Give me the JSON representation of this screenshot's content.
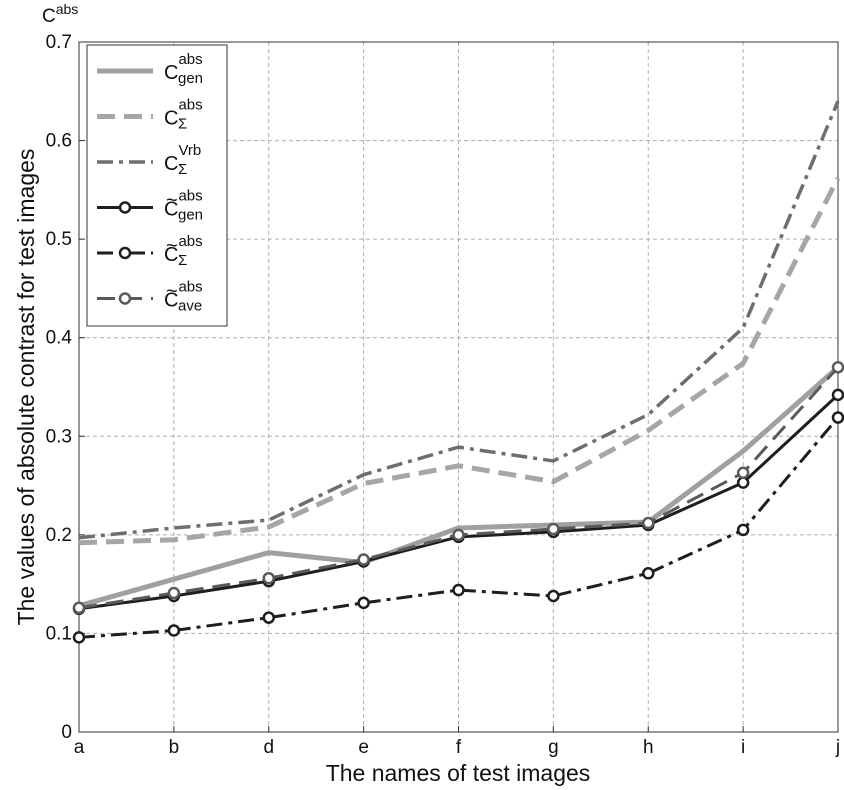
{
  "chart_data": {
    "type": "line",
    "title": "",
    "corner_label": {
      "base": "C",
      "sup": "abs"
    },
    "xlabel": "The names of test images",
    "ylabel": "The values of absolute contrast for test images",
    "categories": [
      "a",
      "b",
      "d",
      "e",
      "f",
      "g",
      "h",
      "i",
      "j"
    ],
    "ylim": [
      0,
      0.7
    ],
    "yticks": [
      0,
      0.1,
      0.2,
      0.3,
      0.4,
      0.5,
      0.6,
      0.7
    ],
    "ytick_labels": [
      "0",
      "0.1",
      "0.2",
      "0.3",
      "0.4",
      "0.5",
      "0.6",
      "0.7"
    ],
    "grid": true,
    "legend_position": "top-left",
    "series": [
      {
        "name": "C_gen^abs",
        "label_base": "C",
        "tilde": false,
        "sub": "gen",
        "sup": "abs",
        "color": "#a0a0a0",
        "style": "solid",
        "marker": false,
        "width": 5,
        "values": [
          0.128,
          0.155,
          0.182,
          0.172,
          0.207,
          0.21,
          0.213,
          0.285,
          0.37
        ]
      },
      {
        "name": "C_Σ^abs",
        "label_base": "C",
        "tilde": false,
        "sub": "Σ",
        "sup": "abs",
        "color": "#a6a6a6",
        "style": "dashed",
        "marker": false,
        "width": 5,
        "values": [
          0.192,
          0.195,
          0.208,
          0.252,
          0.27,
          0.254,
          0.306,
          0.374,
          0.562
        ]
      },
      {
        "name": "C_Σ^Vrb",
        "label_base": "C",
        "tilde": false,
        "sub": "Σ",
        "sup": "Vrb",
        "color": "#6e6e6e",
        "style": "dashdot",
        "marker": false,
        "width": 3.5,
        "values": [
          0.197,
          0.207,
          0.215,
          0.261,
          0.289,
          0.275,
          0.322,
          0.41,
          0.64
        ]
      },
      {
        "name": "C̃_gen^abs",
        "label_base": "C",
        "tilde": true,
        "sub": "gen",
        "sup": "abs",
        "color": "#1e1e1e",
        "style": "solid",
        "marker": true,
        "width": 3,
        "values": [
          0.125,
          0.138,
          0.153,
          0.173,
          0.198,
          0.203,
          0.21,
          0.253,
          0.342
        ]
      },
      {
        "name": "C̃_Σ^abs",
        "label_base": "C",
        "tilde": true,
        "sub": "Σ",
        "sup": "abs",
        "color": "#1e1e1e",
        "style": "dashdot",
        "marker": true,
        "width": 3,
        "values": [
          0.096,
          0.103,
          0.116,
          0.131,
          0.144,
          0.138,
          0.161,
          0.205,
          0.319
        ]
      },
      {
        "name": "C̃_ave^abs",
        "label_base": "C",
        "tilde": true,
        "sub": "ave",
        "sup": "abs",
        "color": "#5a5a5a",
        "style": "dashed",
        "marker": true,
        "width": 3,
        "values": [
          0.126,
          0.141,
          0.156,
          0.175,
          0.2,
          0.206,
          0.212,
          0.263,
          0.37
        ]
      }
    ]
  }
}
